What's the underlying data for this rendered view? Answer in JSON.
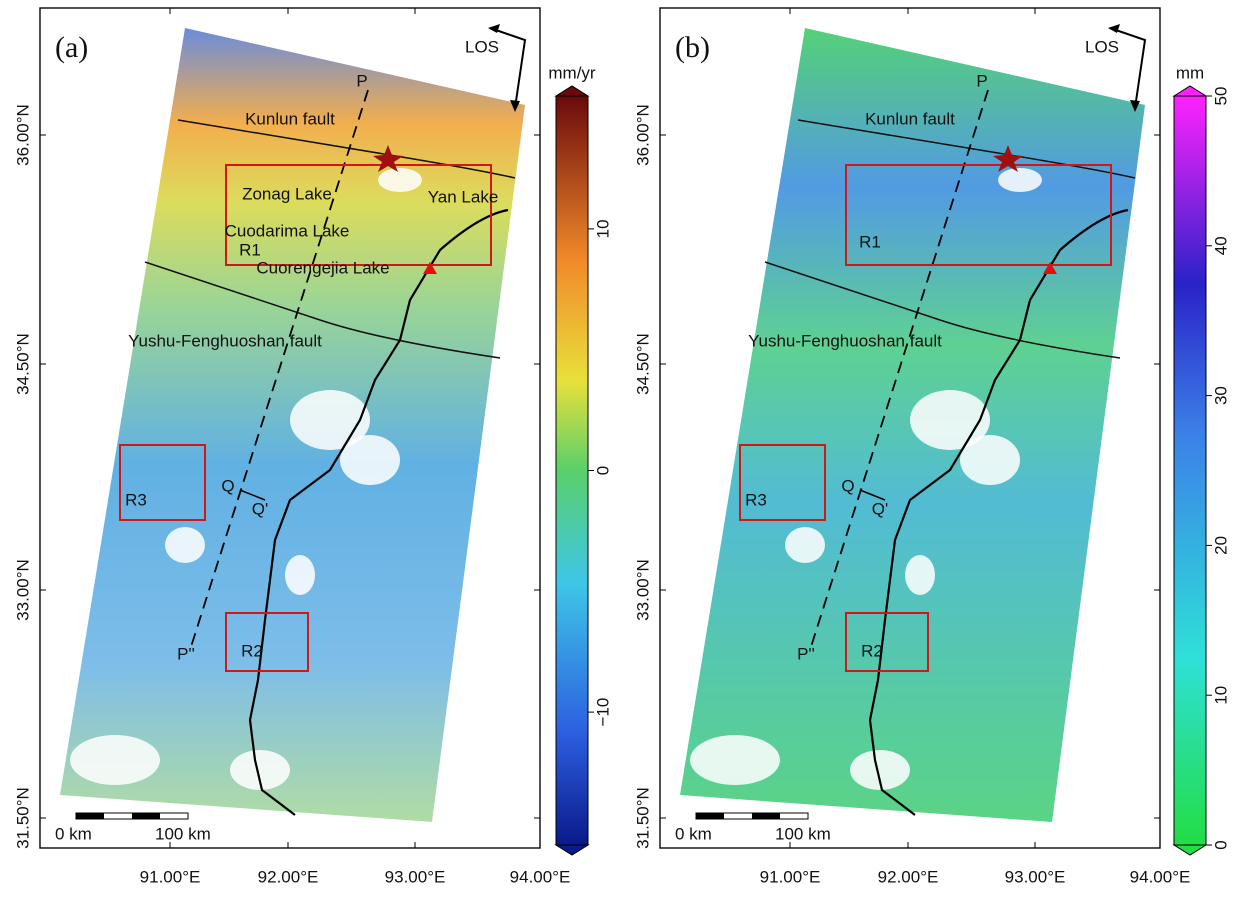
{
  "panels": [
    {
      "label": "(a)",
      "los": "LOS",
      "annotations": [
        "P",
        "Kunlun fault",
        "Zonag Lake",
        "Yan Lake",
        "Cuodarima Lake",
        "R1",
        "Cuorengejia Lake",
        "Yushu-Fenghuoshan fault",
        "R3",
        "Q",
        "Q'",
        "R2",
        "P''"
      ],
      "scale_labels": [
        "0 km",
        "100 km"
      ],
      "lat_ticks": [
        "36.00°N",
        "34.50°N",
        "33.00°N",
        "31.50°N"
      ],
      "lon_ticks": [
        "91.00°E",
        "92.00°E",
        "93.00°E",
        "94.00°E"
      ],
      "colorbar": {
        "unit": "mm/yr",
        "lim": [
          -15.5,
          15.5
        ],
        "ticks": [
          10,
          0,
          {
            "value": -10,
            "label": "−10"
          }
        ]
      }
    },
    {
      "label": "(b)",
      "los": "LOS",
      "annotations": [
        "P",
        "Kunlun fault",
        "R1",
        "Yushu-Fenghuoshan fault",
        "R3",
        "Q",
        "Q'",
        "R2",
        "P''"
      ],
      "scale_labels": [
        "0 km",
        "100 km"
      ],
      "lat_ticks": [
        "36.00°N",
        "34.50°N",
        "33.00°N",
        "31.50°N"
      ],
      "lon_ticks": [
        "91.00°E",
        "92.00°E",
        "93.00°E",
        "94.00°E"
      ],
      "colorbar": {
        "unit": "mm",
        "lim": [
          0,
          50
        ],
        "ticks": [
          0,
          10,
          20,
          30,
          40,
          50
        ]
      }
    }
  ]
}
